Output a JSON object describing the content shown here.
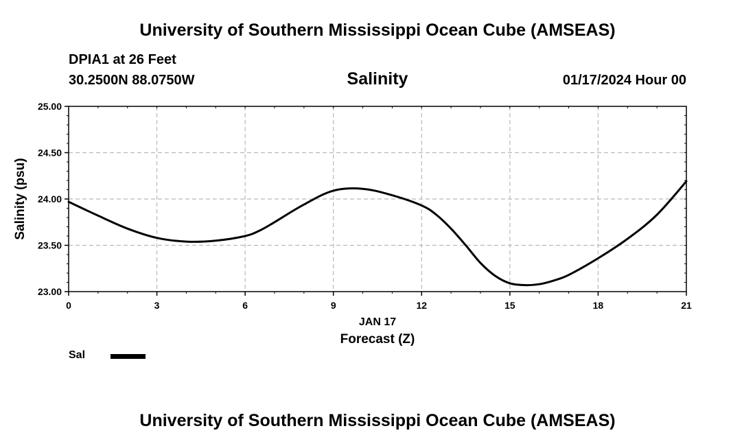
{
  "header": {
    "title": "University of Southern Mississippi Ocean Cube (AMSEAS)"
  },
  "footer": {
    "title": "University of Southern Mississippi Ocean Cube (AMSEAS)"
  },
  "station": {
    "name": "DPIA1 at 26 Feet",
    "coords": "30.2500N  88.0750W"
  },
  "forecast_time": "01/17/2024 Hour 00",
  "legend": {
    "label": "Sal"
  },
  "chart_data": {
    "type": "line",
    "title": "Salinity",
    "xlabel": "Forecast (Z)",
    "xlabel_date": "JAN 17",
    "ylabel": "Salinity (psu)",
    "xlim": [
      0,
      21
    ],
    "ylim": [
      23.0,
      25.0
    ],
    "xticks": [
      0,
      3,
      6,
      9,
      12,
      15,
      18,
      21
    ],
    "xtick_labels": [
      "0",
      "3",
      "6",
      "9",
      "12",
      "15",
      "18",
      "21"
    ],
    "yticks": [
      23.0,
      23.5,
      24.0,
      24.5,
      25.0
    ],
    "ytick_labels": [
      "23.00",
      "23.50",
      "24.00",
      "24.50",
      "25.00"
    ],
    "grid": true,
    "series": [
      {
        "name": "Sal",
        "x": [
          0,
          1,
          2,
          3,
          4,
          5,
          6,
          6.5,
          7,
          8,
          9,
          10,
          11,
          12,
          12.5,
          13,
          13.5,
          14,
          14.5,
          15,
          15.5,
          16,
          16.5,
          17,
          18,
          19,
          20,
          21
        ],
        "values": [
          23.97,
          23.82,
          23.68,
          23.58,
          23.54,
          23.55,
          23.6,
          23.66,
          23.75,
          23.94,
          24.09,
          24.11,
          24.04,
          23.93,
          23.83,
          23.68,
          23.5,
          23.31,
          23.17,
          23.09,
          23.07,
          23.08,
          23.12,
          23.18,
          23.36,
          23.57,
          23.83,
          24.19
        ]
      }
    ]
  }
}
